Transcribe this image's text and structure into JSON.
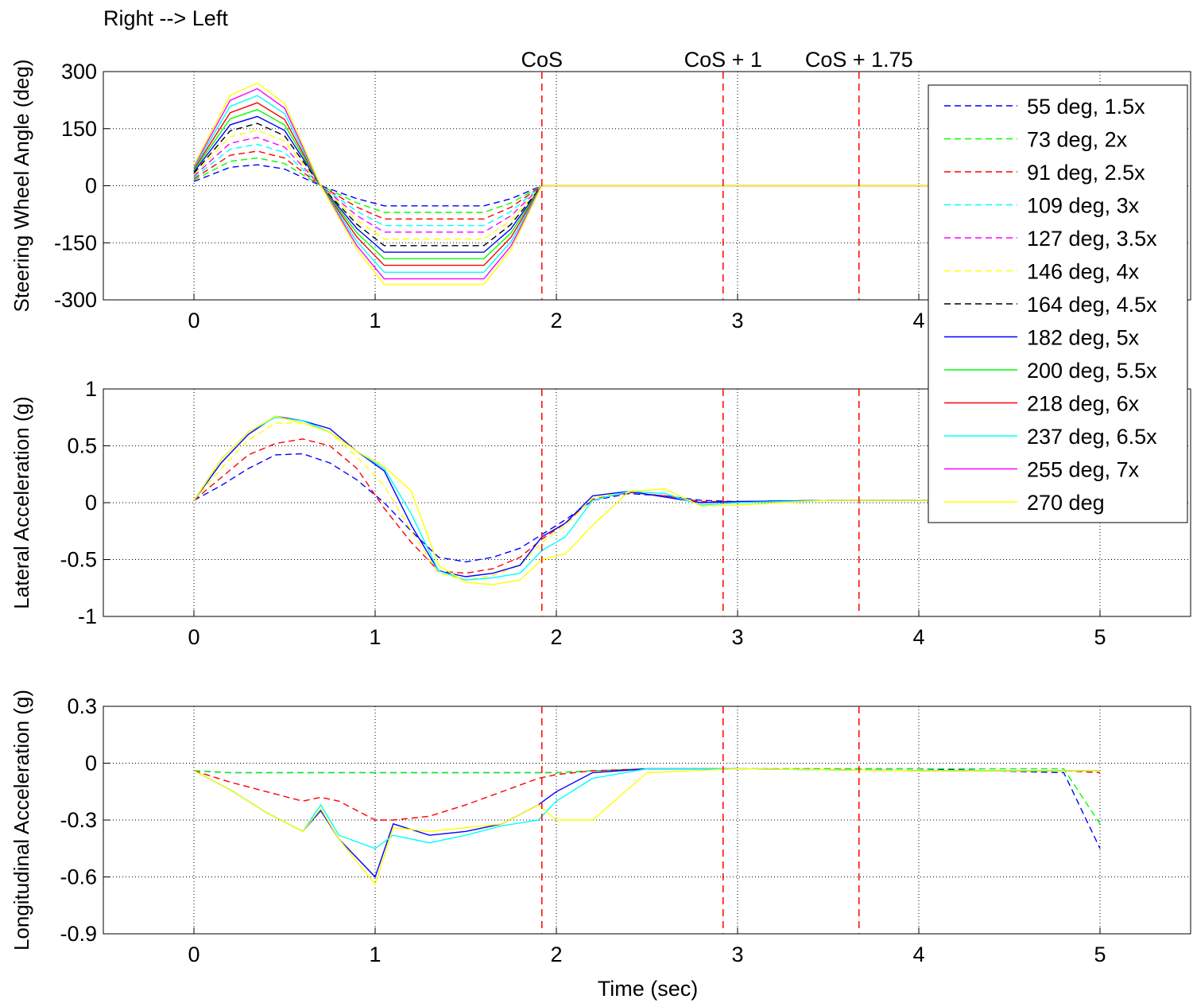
{
  "figure": {
    "title": "Right --> Left",
    "xlabel": "Time (sec)"
  },
  "markers": [
    {
      "label": "CoS",
      "x": 1.92
    },
    {
      "label": "CoS + 1",
      "x": 2.92
    },
    {
      "label": "CoS + 1.75",
      "x": 3.67
    }
  ],
  "legend": [
    {
      "name": "55 deg, 1.5x",
      "color": "#0000ff",
      "dashed": true,
      "amp": 55
    },
    {
      "name": "73 deg, 2x",
      "color": "#00ff00",
      "dashed": true,
      "amp": 73
    },
    {
      "name": "91 deg, 2.5x",
      "color": "#ff0000",
      "dashed": true,
      "amp": 91
    },
    {
      "name": "109 deg, 3x",
      "color": "#00ffff",
      "dashed": true,
      "amp": 109
    },
    {
      "name": "127 deg, 3.5x",
      "color": "#ff00ff",
      "dashed": true,
      "amp": 127
    },
    {
      "name": "146 deg, 4x",
      "color": "#ffff00",
      "dashed": true,
      "amp": 146
    },
    {
      "name": "164 deg, 4.5x",
      "color": "#000000",
      "dashed": true,
      "amp": 164
    },
    {
      "name": "182 deg, 5x",
      "color": "#0000ff",
      "dashed": false,
      "amp": 182
    },
    {
      "name": "200 deg, 5.5x",
      "color": "#00ff00",
      "dashed": false,
      "amp": 200
    },
    {
      "name": "218 deg, 6x",
      "color": "#ff0000",
      "dashed": false,
      "amp": 218
    },
    {
      "name": "237 deg, 6.5x",
      "color": "#00ffff",
      "dashed": false,
      "amp": 237
    },
    {
      "name": "255 deg, 7x",
      "color": "#ff00ff",
      "dashed": false,
      "amp": 255
    },
    {
      "name": "270 deg",
      "color": "#ffff00",
      "dashed": false,
      "amp": 270
    }
  ],
  "chart_data": [
    {
      "type": "line",
      "ylabel": "Steering Wheel Angle (deg)",
      "xlim": [
        -0.5,
        5.5
      ],
      "ylim": [
        -300,
        300
      ],
      "xticks": [
        0,
        1,
        2,
        3,
        4,
        5
      ],
      "yticks": [
        300,
        150,
        0,
        -150,
        -300
      ],
      "grid": true,
      "legend_position": "right",
      "x": [
        0,
        0.2,
        0.35,
        0.5,
        0.7,
        0.9,
        1.05,
        1.6,
        1.75,
        1.92,
        1.95,
        5
      ],
      "series_shape": [
        0.2,
        0.88,
        1.0,
        0.8,
        0.0,
        -0.62,
        -0.96,
        -0.96,
        -0.62,
        0.0,
        0.0,
        0.0
      ],
      "series_note": "value = amp x shape for each series"
    },
    {
      "type": "line",
      "ylabel": "Lateral Acceleration (g)",
      "xlim": [
        -0.5,
        5.5
      ],
      "ylim": [
        -1,
        1
      ],
      "xticks": [
        0,
        1,
        2,
        3,
        4,
        5
      ],
      "yticks": [
        1,
        0.5,
        0,
        -0.5,
        -1
      ],
      "grid": true,
      "x": [
        0,
        0.15,
        0.3,
        0.45,
        0.6,
        0.75,
        0.9,
        1.05,
        1.2,
        1.35,
        1.5,
        1.65,
        1.8,
        1.92,
        2.05,
        2.2,
        2.4,
        2.6,
        2.8,
        3.0,
        3.5,
        4.0,
        4.5,
        5.0
      ],
      "series": [
        {
          "name": "55 deg, 1.5x",
          "values": [
            0.02,
            0.15,
            0.3,
            0.42,
            0.43,
            0.35,
            0.2,
            0.0,
            -0.25,
            -0.48,
            -0.52,
            -0.48,
            -0.4,
            -0.28,
            -0.15,
            0.02,
            0.08,
            0.06,
            0.02,
            0.01,
            0.02,
            0.02,
            0.02,
            0.02
          ]
        },
        {
          "name": "91 deg, 2.5x",
          "values": [
            0.02,
            0.22,
            0.42,
            0.52,
            0.56,
            0.5,
            0.3,
            -0.05,
            -0.35,
            -0.6,
            -0.62,
            -0.58,
            -0.48,
            -0.32,
            -0.18,
            0.03,
            0.09,
            0.06,
            0.01,
            0.01,
            0.02,
            0.02,
            0.02,
            0.02
          ]
        },
        {
          "name": "146 deg, 4x",
          "values": [
            0.02,
            0.3,
            0.55,
            0.7,
            0.7,
            0.62,
            0.4,
            0.15,
            -0.25,
            -0.62,
            -0.68,
            -0.64,
            -0.55,
            -0.35,
            -0.2,
            0.04,
            0.1,
            0.05,
            0.0,
            0.01,
            0.02,
            0.02,
            0.02,
            0.02
          ]
        },
        {
          "name": "182 deg, 5x",
          "values": [
            0.02,
            0.35,
            0.6,
            0.76,
            0.72,
            0.65,
            0.45,
            0.28,
            -0.2,
            -0.6,
            -0.65,
            -0.62,
            -0.55,
            -0.3,
            -0.18,
            0.06,
            0.1,
            0.05,
            0.0,
            0.01,
            0.02,
            0.02,
            0.02,
            0.02
          ]
        },
        {
          "name": "237 deg, 6.5x",
          "values": [
            0.02,
            0.38,
            0.62,
            0.75,
            0.72,
            0.62,
            0.45,
            0.3,
            -0.1,
            -0.6,
            -0.68,
            -0.66,
            -0.62,
            -0.42,
            -0.3,
            0.02,
            0.1,
            0.08,
            -0.02,
            0.0,
            0.02,
            0.02,
            0.02,
            0.02
          ]
        },
        {
          "name": "270 deg",
          "values": [
            0.02,
            0.38,
            0.62,
            0.76,
            0.7,
            0.62,
            0.45,
            0.32,
            0.1,
            -0.55,
            -0.7,
            -0.72,
            -0.68,
            -0.5,
            -0.45,
            -0.2,
            0.1,
            0.12,
            -0.03,
            -0.02,
            0.02,
            0.02,
            0.02,
            0.02
          ]
        }
      ]
    },
    {
      "type": "line",
      "ylabel": "Longitudinal Acceleration (g)",
      "xlim": [
        -0.5,
        5.5
      ],
      "ylim": [
        -0.9,
        0.3
      ],
      "xticks": [
        0,
        1,
        2,
        3,
        4,
        5
      ],
      "yticks": [
        0.3,
        0,
        -0.3,
        -0.6,
        -0.9
      ],
      "grid": true,
      "x": [
        0,
        0.2,
        0.4,
        0.6,
        0.7,
        0.8,
        1.0,
        1.1,
        1.3,
        1.5,
        1.7,
        1.9,
        2.0,
        2.2,
        2.5,
        3.0,
        4.0,
        4.8,
        5.0
      ],
      "series": [
        {
          "name": "55 deg, 1.5x",
          "values": [
            -0.04,
            -0.05,
            -0.05,
            -0.05,
            -0.05,
            -0.05,
            -0.05,
            -0.05,
            -0.05,
            -0.05,
            -0.05,
            -0.05,
            -0.05,
            -0.04,
            -0.03,
            -0.03,
            -0.03,
            -0.05,
            -0.45
          ]
        },
        {
          "name": "73 deg, 2x",
          "values": [
            -0.04,
            -0.05,
            -0.05,
            -0.05,
            -0.05,
            -0.05,
            -0.05,
            -0.05,
            -0.05,
            -0.05,
            -0.05,
            -0.05,
            -0.05,
            -0.04,
            -0.03,
            -0.03,
            -0.03,
            -0.03,
            -0.32
          ]
        },
        {
          "name": "91 deg, 2.5x",
          "values": [
            -0.04,
            -0.1,
            -0.15,
            -0.2,
            -0.18,
            -0.2,
            -0.3,
            -0.3,
            -0.28,
            -0.22,
            -0.15,
            -0.08,
            -0.06,
            -0.04,
            -0.03,
            -0.03,
            -0.04,
            -0.04,
            -0.05
          ]
        },
        {
          "name": "182 deg, 5x",
          "values": [
            -0.04,
            -0.14,
            -0.26,
            -0.36,
            -0.25,
            -0.4,
            -0.6,
            -0.32,
            -0.38,
            -0.36,
            -0.32,
            -0.22,
            -0.15,
            -0.05,
            -0.03,
            -0.03,
            -0.04,
            -0.04,
            -0.04
          ]
        },
        {
          "name": "237 deg, 6.5x",
          "values": [
            -0.04,
            -0.14,
            -0.26,
            -0.36,
            -0.22,
            -0.38,
            -0.45,
            -0.38,
            -0.42,
            -0.38,
            -0.33,
            -0.3,
            -0.2,
            -0.08,
            -0.03,
            -0.03,
            -0.04,
            -0.04,
            -0.04
          ]
        },
        {
          "name": "270 deg",
          "values": [
            -0.04,
            -0.14,
            -0.26,
            -0.36,
            -0.24,
            -0.4,
            -0.64,
            -0.34,
            -0.36,
            -0.34,
            -0.32,
            -0.22,
            -0.3,
            -0.3,
            -0.05,
            -0.03,
            -0.04,
            -0.04,
            -0.04
          ]
        }
      ]
    }
  ]
}
